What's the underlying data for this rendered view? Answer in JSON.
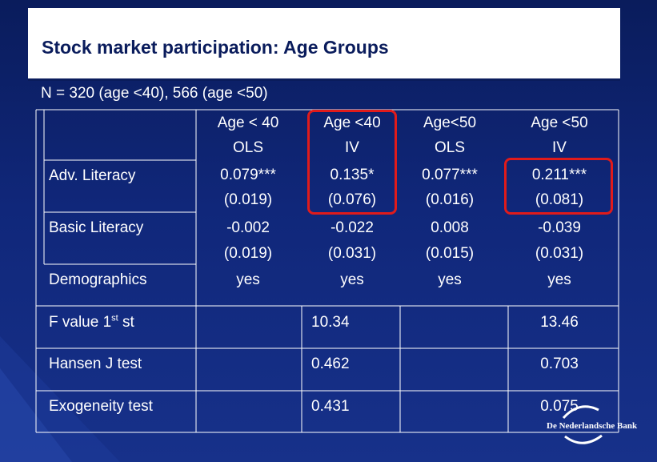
{
  "title": "Stock market participation: Age Groups",
  "subtitle": "N = 320 (age <40), 566 (age <50)",
  "columns": [
    {
      "line1": "Age < 40",
      "line2": "OLS"
    },
    {
      "line1": "Age <40",
      "line2": "IV"
    },
    {
      "line1": "Age<50",
      "line2": "OLS"
    },
    {
      "line1": "Age <50",
      "line2": "IV"
    }
  ],
  "rows": [
    {
      "label": "Adv. Literacy",
      "values": [
        {
          "coef": "0.079***",
          "se": "(0.019)"
        },
        {
          "coef": "0.135*",
          "se": "(0.076)"
        },
        {
          "coef": "0.077***",
          "se": "(0.016)"
        },
        {
          "coef": "0.211***",
          "se": "(0.081)"
        }
      ]
    },
    {
      "label": "Basic Literacy",
      "values": [
        {
          "coef": "-0.002",
          "se": "(0.019)"
        },
        {
          "coef": "-0.022",
          "se": "(0.031)"
        },
        {
          "coef": "0.008",
          "se": "(0.015)"
        },
        {
          "coef": "-0.039",
          "se": "(0.031)"
        }
      ]
    },
    {
      "label": "Demographics",
      "values": [
        "yes",
        "yes",
        "yes",
        "yes"
      ]
    }
  ],
  "tests": [
    {
      "label_main": "F value 1",
      "label_sup": "st",
      "label_tail": " st",
      "age40_iv": "10.34",
      "age50_iv": "13.46"
    },
    {
      "label_main": "Hansen J test",
      "label_sup": "",
      "label_tail": "",
      "age40_iv": "0.462",
      "age50_iv": "0.703"
    },
    {
      "label_main": "Exogeneity test",
      "label_sup": "",
      "label_tail": "",
      "age40_iv": "0.431",
      "age50_iv": "0.075"
    }
  ],
  "logo": {
    "text": "De Nederlandsche Bank"
  },
  "colors": {
    "background": "#10277a",
    "highlight": "#e01b1b",
    "title_text": "#0a1c5c"
  }
}
